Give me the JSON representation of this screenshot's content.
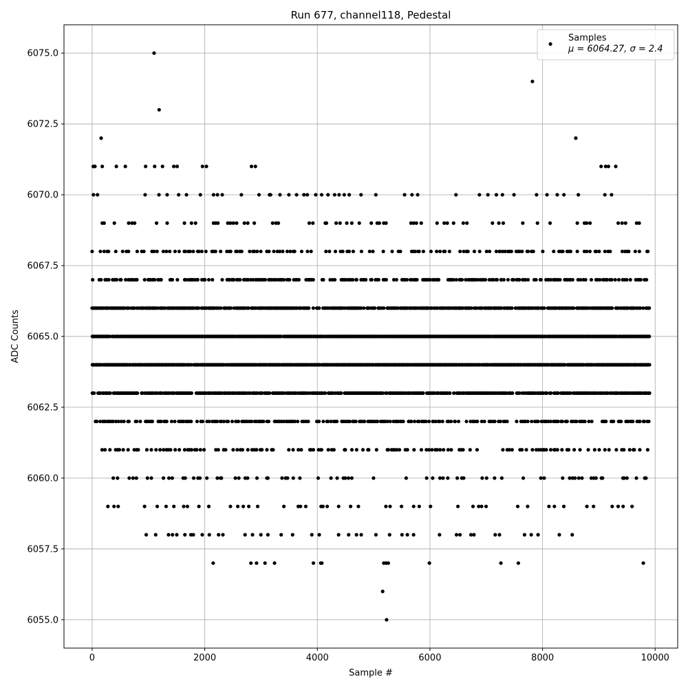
{
  "chart_data": {
    "type": "scatter",
    "title": "Run 677, channel118, Pedestal",
    "xlabel": "Sample #",
    "ylabel": "ADC Counts",
    "xlim": [
      -500,
      10400
    ],
    "ylim": [
      6054,
      6076
    ],
    "xticks": [
      0,
      2000,
      4000,
      6000,
      8000,
      10000
    ],
    "xtick_labels": [
      "0",
      "2000",
      "4000",
      "6000",
      "8000",
      "10000"
    ],
    "yticks": [
      6055.0,
      6057.5,
      6060.0,
      6062.5,
      6065.0,
      6067.5,
      6070.0,
      6072.5,
      6075.0
    ],
    "ytick_labels": [
      "6055.0",
      "6057.5",
      "6060.0",
      "6062.5",
      "6065.0",
      "6067.5",
      "6070.0",
      "6072.5",
      "6075.0"
    ],
    "grid": true,
    "legend_position": "top-right",
    "marker_color": "#000000",
    "grid_color": "#b0b0b0",
    "series": [
      {
        "name": "Samples",
        "stats_label": "μ = 6064.27, σ = 2.4",
        "n_samples": 10000,
        "x_range": [
          0,
          9900
        ],
        "bands": [
          {
            "y": 6063,
            "x_start": 0,
            "x_end": 9900
          },
          {
            "y": 6064,
            "x_start": 0,
            "x_end": 9900
          },
          {
            "y": 6065,
            "x_start": 0,
            "x_end": 9900
          },
          {
            "y": 6066,
            "x_start": 0,
            "x_end": 9900
          },
          {
            "y": 6067,
            "x_start": 0,
            "x_end": 9900
          },
          {
            "y": 6068,
            "x_start": 0,
            "x_end": 9900
          },
          {
            "y": 6062,
            "x_start": 60,
            "x_end": 9900
          },
          {
            "y": 6061,
            "x_start": 100,
            "x_end": 9900
          },
          {
            "y": 6069,
            "x_start": 0,
            "x_end": 9900
          },
          {
            "y": 6060,
            "x_start": 280,
            "x_end": 9900
          },
          {
            "y": 6070,
            "x_start": 0,
            "x_end": 9300
          },
          {
            "y": 6059,
            "x_start": 280,
            "x_end": 9800
          },
          {
            "y": 6058,
            "x_start": 780,
            "x_end": 8730
          }
        ],
        "points": [
          [
            1100,
            6075
          ],
          [
            1190,
            6073
          ],
          [
            160,
            6072
          ],
          [
            7820,
            6074
          ],
          [
            8590,
            6072
          ],
          [
            20,
            6071
          ],
          [
            50,
            6071
          ],
          [
            180,
            6071
          ],
          [
            430,
            6071
          ],
          [
            590,
            6071
          ],
          [
            950,
            6071
          ],
          [
            1110,
            6071
          ],
          [
            1250,
            6071
          ],
          [
            1450,
            6071
          ],
          [
            1510,
            6071
          ],
          [
            1960,
            6071
          ],
          [
            2030,
            6071
          ],
          [
            2830,
            6071
          ],
          [
            2900,
            6071
          ],
          [
            9040,
            6071
          ],
          [
            9120,
            6071
          ],
          [
            9170,
            6071
          ],
          [
            9300,
            6071
          ],
          [
            2150,
            6057
          ],
          [
            2820,
            6057
          ],
          [
            2920,
            6057
          ],
          [
            3070,
            6057
          ],
          [
            3240,
            6057
          ],
          [
            3930,
            6057
          ],
          [
            4060,
            6057
          ],
          [
            4080,
            6057
          ],
          [
            5180,
            6057
          ],
          [
            5220,
            6057
          ],
          [
            5260,
            6057
          ],
          [
            5990,
            6057
          ],
          [
            7260,
            6057
          ],
          [
            7570,
            6057
          ],
          [
            9790,
            6057
          ],
          [
            5160,
            6056
          ],
          [
            5230,
            6055
          ]
        ]
      }
    ]
  }
}
